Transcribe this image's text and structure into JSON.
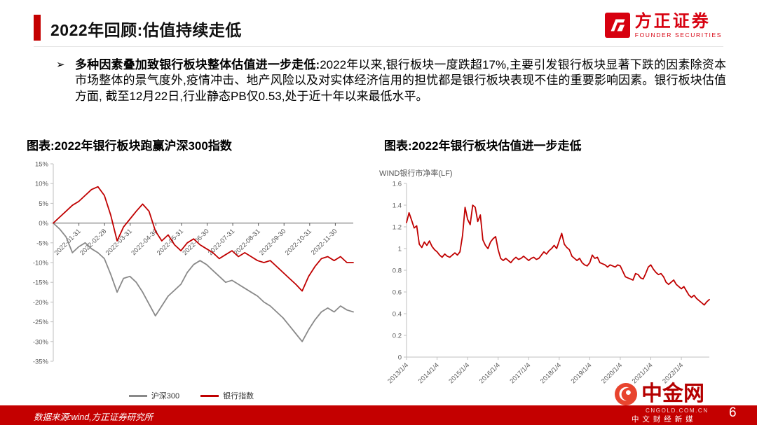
{
  "colors": {
    "accent_red": "#c40000",
    "line_red": "#c00000",
    "line_gray": "#898989",
    "logo_red": "#d7000f"
  },
  "header": {
    "title": "2022年回顾:估值持续走低",
    "logo_name": "方正证券",
    "logo_sub": "FOUNDER SECURITIES"
  },
  "bullet": {
    "marker": "➢",
    "lead": "多种因素叠加致银行板块整体估值进一步走低:",
    "body": "2022年以来,银行板块一度跌超17%,主要引发银行板块显著下跌的因素除资本市场整体的景气度外,疫情冲击、地产风险以及对实体经济信用的担忧都是银行板块表现不佳的重要影响因素。银行板块估值方面, 截至12月22日,行业静态PB仅0.53,处于近十年以来最低水平。"
  },
  "chart_data": [
    {
      "type": "line",
      "title": "图表:2022年银行板块跑赢沪深300指数",
      "x_labels": [
        "2022-01-31",
        "2022-02-28",
        "2022-03-31",
        "2022-04-30",
        "2022-05-31",
        "2022-06-30",
        "2022-07-31",
        "2022-08-31",
        "2022-09-30",
        "2022-10-31",
        "2022-11-30"
      ],
      "y_ticks": [
        "15%",
        "10%",
        "5%",
        "0%",
        "-5%",
        "-10%",
        "-15%",
        "-20%",
        "-25%",
        "-30%",
        "-35%"
      ],
      "ylim": [
        -35,
        15
      ],
      "grid": false,
      "legend_position": "bottom",
      "legend": [
        "沪深300",
        "银行指数"
      ],
      "series": [
        {
          "name": "沪深300",
          "color": "#898989",
          "values": [
            0,
            -1.5,
            -3.5,
            -7.5,
            -6,
            -5,
            -6.5,
            -7.5,
            -9,
            -13,
            -17.5,
            -14,
            -13.5,
            -15,
            -17.5,
            -20.5,
            -23.5,
            -21,
            -18.5,
            -17,
            -15.5,
            -12.5,
            -10.5,
            -9.5,
            -10.5,
            -12,
            -13.5,
            -15,
            -14.5,
            -15.5,
            -16.5,
            -17.5,
            -18.5,
            -20,
            -21,
            -22.5,
            -24,
            -26,
            -28,
            -30,
            -27,
            -24.5,
            -22.5,
            -21.5,
            -22.5,
            -21,
            -22,
            -22.5
          ]
        },
        {
          "name": "银行指数",
          "color": "#c00000",
          "values": [
            0,
            1.5,
            3,
            4.5,
            5.5,
            7,
            8.5,
            9.2,
            7,
            2,
            -4.5,
            -1,
            1,
            3,
            4.8,
            3,
            -2,
            -4.5,
            -3,
            -5.5,
            -7,
            -5,
            -4,
            -5.5,
            -6.5,
            -7.5,
            -9,
            -8,
            -7,
            -8.5,
            -7.5,
            -8.5,
            -9.5,
            -10,
            -9.5,
            -11,
            -12.5,
            -14,
            -15.5,
            -17.2,
            -13.5,
            -11,
            -9,
            -8.5,
            -9.5,
            -8.5,
            -10,
            -10
          ]
        }
      ]
    },
    {
      "type": "line",
      "title": "图表:2022年银行板块估值进一步走低",
      "series_label": "WIND银行市净率(LF)",
      "x_labels": [
        "2013/1/4",
        "2014/1/4",
        "2015/1/4",
        "2016/1/4",
        "2017/1/4",
        "2018/1/4",
        "2019/1/4",
        "2020/1/4",
        "2021/1/4",
        "2022/1/4"
      ],
      "y_ticks": [
        1.6,
        1.4,
        1.2,
        1,
        0.8,
        0.6,
        0.4,
        0.2,
        0
      ],
      "ylim": [
        0,
        1.6
      ],
      "grid": false,
      "series": [
        {
          "name": "WIND银行市净率(LF)",
          "color": "#c00000",
          "values": [
            1.24,
            1.33,
            1.26,
            1.19,
            1.21,
            1.04,
            1.01,
            1.06,
            1.03,
            1.07,
            1.02,
            0.99,
            0.97,
            0.94,
            0.92,
            0.95,
            0.93,
            0.92,
            0.94,
            0.96,
            0.94,
            0.97,
            1.12,
            1.38,
            1.27,
            1.22,
            1.4,
            1.38,
            1.25,
            1.31,
            1.08,
            1.03,
            1.0,
            1.06,
            1.09,
            1.11,
            0.99,
            0.91,
            0.89,
            0.91,
            0.89,
            0.87,
            0.9,
            0.92,
            0.9,
            0.91,
            0.93,
            0.91,
            0.89,
            0.91,
            0.92,
            0.9,
            0.91,
            0.94,
            0.97,
            0.95,
            0.98,
            1.0,
            1.03,
            1.0,
            1.07,
            1.14,
            1.04,
            1.01,
            0.99,
            0.93,
            0.91,
            0.89,
            0.91,
            0.87,
            0.85,
            0.84,
            0.87,
            0.94,
            0.91,
            0.92,
            0.87,
            0.86,
            0.85,
            0.83,
            0.85,
            0.84,
            0.83,
            0.85,
            0.84,
            0.79,
            0.74,
            0.73,
            0.72,
            0.71,
            0.77,
            0.76,
            0.73,
            0.72,
            0.77,
            0.83,
            0.85,
            0.81,
            0.78,
            0.76,
            0.77,
            0.74,
            0.69,
            0.67,
            0.69,
            0.71,
            0.67,
            0.65,
            0.63,
            0.65,
            0.61,
            0.57,
            0.55,
            0.57,
            0.54,
            0.52,
            0.5,
            0.48,
            0.51,
            0.53
          ]
        }
      ]
    }
  ],
  "footer": {
    "source": "数据来源:wind,方正证券研究所",
    "page": "6",
    "watermark": {
      "name": "中金网",
      "url": "CNGOLD.COM.CN",
      "tagline": "中 文 财 经 新 媒"
    }
  }
}
